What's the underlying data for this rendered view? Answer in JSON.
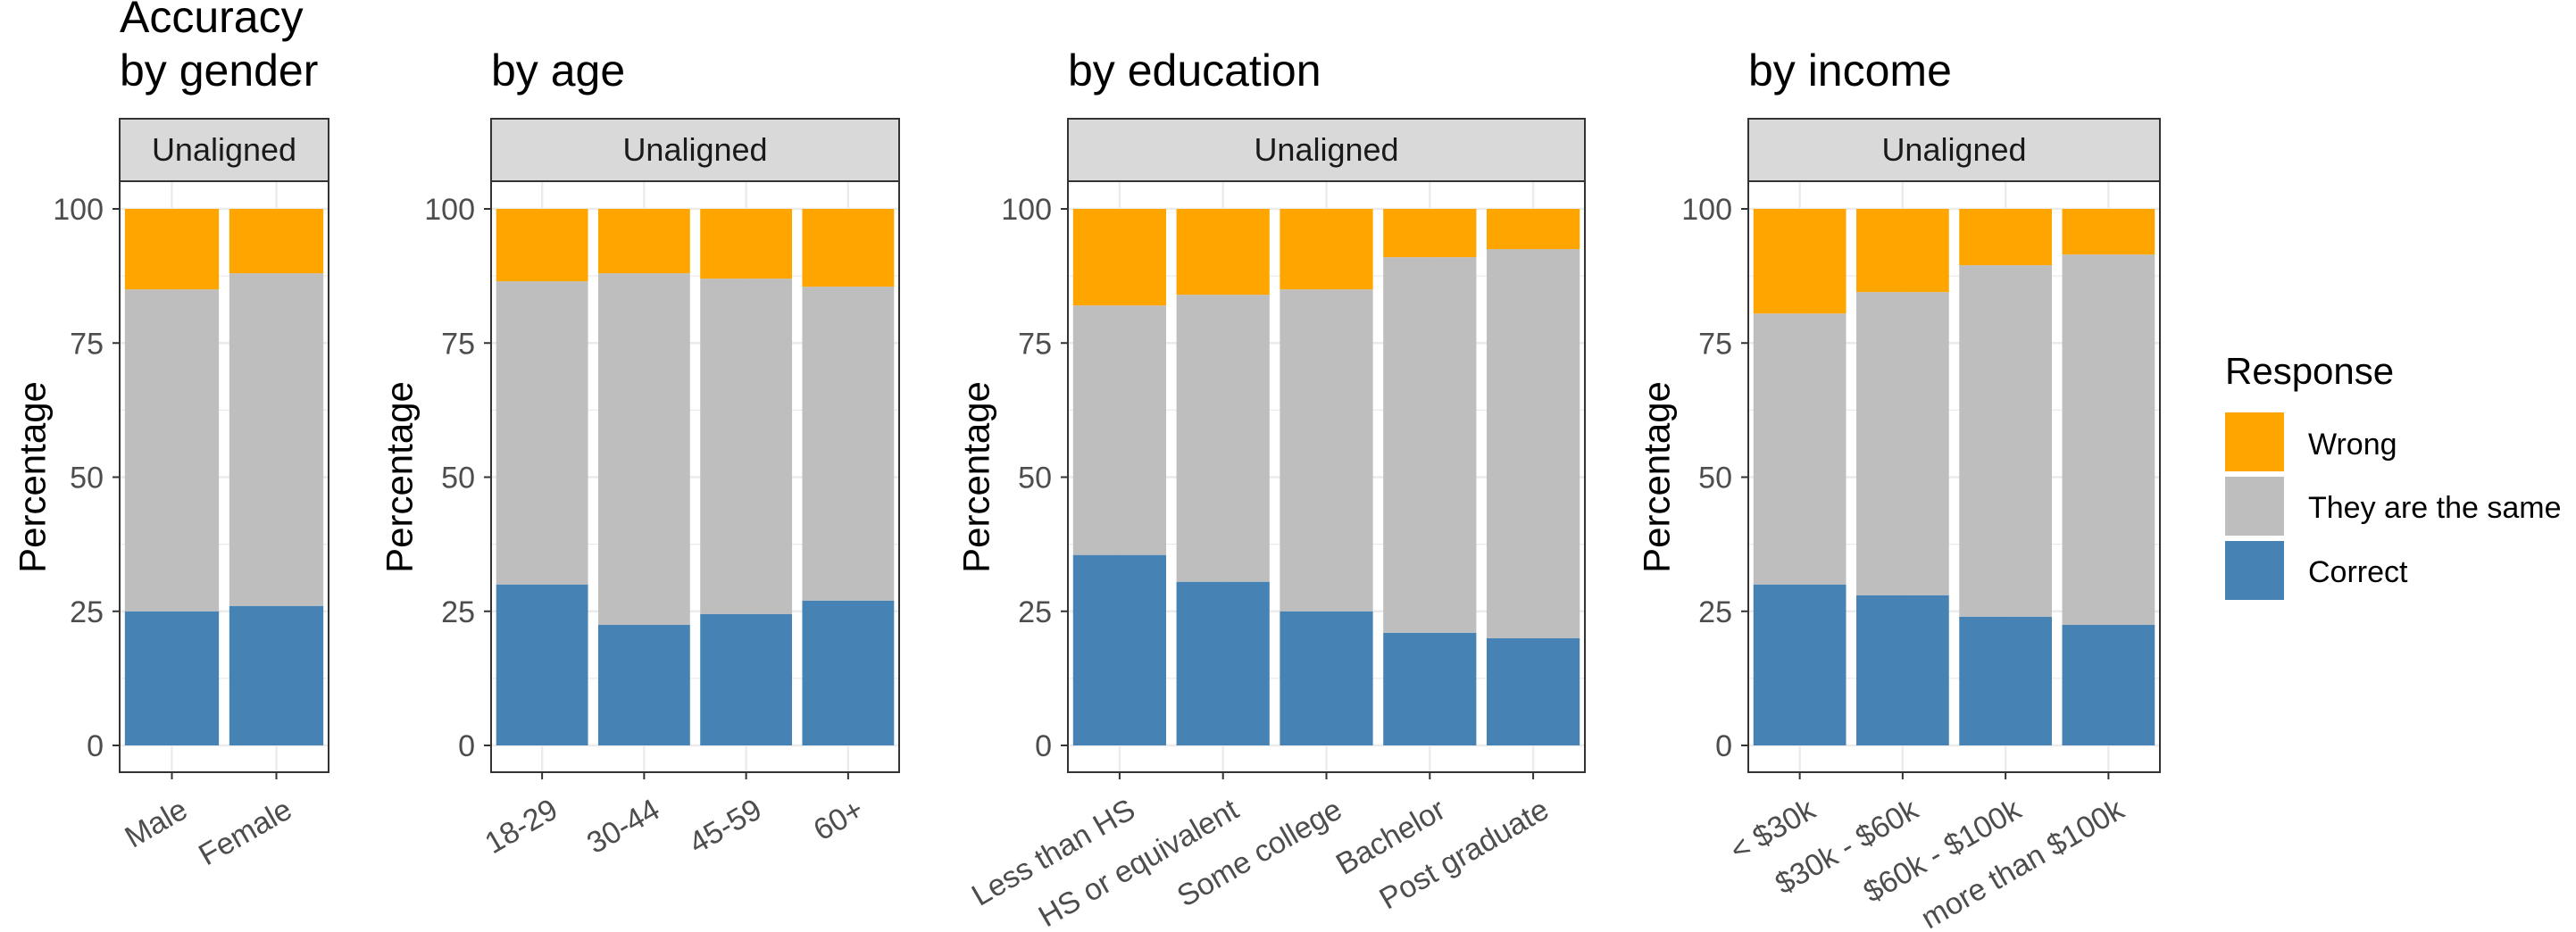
{
  "chart_data": [
    {
      "type": "bar",
      "title": "Accuracy\nby gender",
      "facet": "Unaligned",
      "ylabel": "Percentage",
      "ylim": [
        0,
        100
      ],
      "yticks": [
        0,
        25,
        50,
        75,
        100
      ],
      "categories": [
        "Male",
        "Female"
      ],
      "series": [
        {
          "name": "Correct",
          "values": [
            25,
            26
          ]
        },
        {
          "name": "They are the same",
          "values": [
            60,
            62
          ]
        },
        {
          "name": "Wrong",
          "values": [
            15,
            12
          ]
        }
      ]
    },
    {
      "type": "bar",
      "title": "by age",
      "facet": "Unaligned",
      "ylabel": "Percentage",
      "ylim": [
        0,
        100
      ],
      "yticks": [
        0,
        25,
        50,
        75,
        100
      ],
      "categories": [
        "18-29",
        "30-44",
        "45-59",
        "60+"
      ],
      "series": [
        {
          "name": "Correct",
          "values": [
            30,
            22.5,
            24.5,
            27
          ]
        },
        {
          "name": "They are the same",
          "values": [
            56.5,
            65.5,
            62.5,
            58.5
          ]
        },
        {
          "name": "Wrong",
          "values": [
            13.5,
            12,
            13,
            14.5
          ]
        }
      ]
    },
    {
      "type": "bar",
      "title": "by education",
      "facet": "Unaligned",
      "ylabel": "Percentage",
      "ylim": [
        0,
        100
      ],
      "yticks": [
        0,
        25,
        50,
        75,
        100
      ],
      "categories": [
        "Less than HS",
        "HS or equivalent",
        "Some college",
        "Bachelor",
        "Post graduate"
      ],
      "series": [
        {
          "name": "Correct",
          "values": [
            35.5,
            30.5,
            25,
            21,
            20
          ]
        },
        {
          "name": "They are the same",
          "values": [
            46.5,
            53.5,
            60,
            70,
            72.5
          ]
        },
        {
          "name": "Wrong",
          "values": [
            18,
            16,
            15,
            9,
            7.5
          ]
        }
      ]
    },
    {
      "type": "bar",
      "title": "by income",
      "facet": "Unaligned",
      "ylabel": "Percentage",
      "ylim": [
        0,
        100
      ],
      "yticks": [
        0,
        25,
        50,
        75,
        100
      ],
      "categories": [
        "< $30k",
        "$30k - $60k",
        "$60k - $100k",
        "more than $100k"
      ],
      "series": [
        {
          "name": "Correct",
          "values": [
            30,
            28,
            24,
            22.5
          ]
        },
        {
          "name": "They are the same",
          "values": [
            50.5,
            56.5,
            65.5,
            69
          ]
        },
        {
          "name": "Wrong",
          "values": [
            19.5,
            15.5,
            10.5,
            8.5
          ]
        }
      ]
    }
  ],
  "legend": {
    "title": "Response",
    "items": [
      {
        "label": "Wrong",
        "color": "#FFA500"
      },
      {
        "label": "They are the same",
        "color": "#BEBEBE"
      },
      {
        "label": "Correct",
        "color": "#4682B4"
      }
    ]
  },
  "colors": {
    "Correct": "#4682B4",
    "They are the same": "#BEBEBE",
    "Wrong": "#FFA500",
    "strip_fill": "#D9D9D9",
    "grid": "#EBEBEB",
    "panel_border": "#333333"
  }
}
